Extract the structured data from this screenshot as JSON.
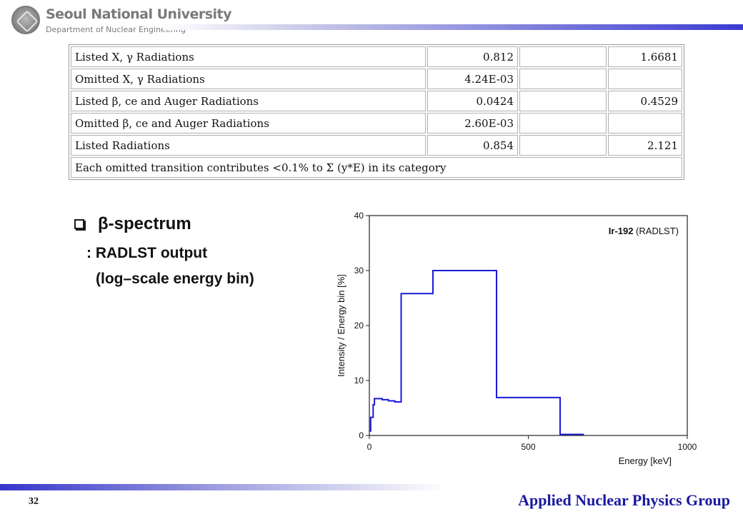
{
  "header": {
    "university": "Seoul National University",
    "department": "Department of Nuclear Engineering"
  },
  "table": {
    "rows": [
      {
        "label": "Listed X, γ Radiations",
        "value1": "0.812",
        "value2": "1.6681"
      },
      {
        "label": "Omitted X, γ Radiations",
        "value1": "4.24E-03",
        "value2": ""
      },
      {
        "label": "Listed β, ce and Auger Radiations",
        "value1": "0.0424",
        "value2": "0.4529"
      },
      {
        "label": "Omitted β, ce and Auger Radiations",
        "value1": "2.60E-03",
        "value2": ""
      },
      {
        "label": "Listed Radiations",
        "value1": "0.854",
        "value2": "2.121"
      }
    ],
    "footnote": "Each omitted transition contributes <0.1% to Σ (y*E) in its category"
  },
  "section": {
    "title": "β-spectrum",
    "subtitle_line1": ": RADLST output",
    "subtitle_line2": "(log–scale energy bin)"
  },
  "chart_data": {
    "type": "line",
    "step": true,
    "annotation_bold": "Ir-192",
    "annotation_rest": " (RADLST)",
    "xlabel": "Energy [keV]",
    "ylabel": "Intensity / Energy bin [%]",
    "xlim": [
      0,
      1000
    ],
    "ylim": [
      0,
      40
    ],
    "xticks": [
      0,
      500,
      1000
    ],
    "yticks": [
      0,
      10,
      20,
      30,
      40
    ],
    "grid": false,
    "color": "#1a1ad6",
    "series": [
      {
        "x": [
          0,
          4,
          4,
          8,
          8,
          12,
          12,
          16,
          16,
          20,
          20,
          40,
          40,
          60,
          60,
          80,
          80,
          100,
          100,
          200,
          200,
          400,
          400,
          600,
          600,
          675
        ],
        "y": [
          0.8,
          0.8,
          3.3,
          3.3,
          3.3,
          3.3,
          5.6,
          5.6,
          6.7,
          6.7,
          6.7,
          6.7,
          6.5,
          6.5,
          6.3,
          6.3,
          6.1,
          6.1,
          25.8,
          25.8,
          30.0,
          30.0,
          6.9,
          6.9,
          0.2,
          0.2
        ]
      }
    ]
  },
  "footer": {
    "page_number": "32",
    "group": "Applied Nuclear Physics Group"
  }
}
